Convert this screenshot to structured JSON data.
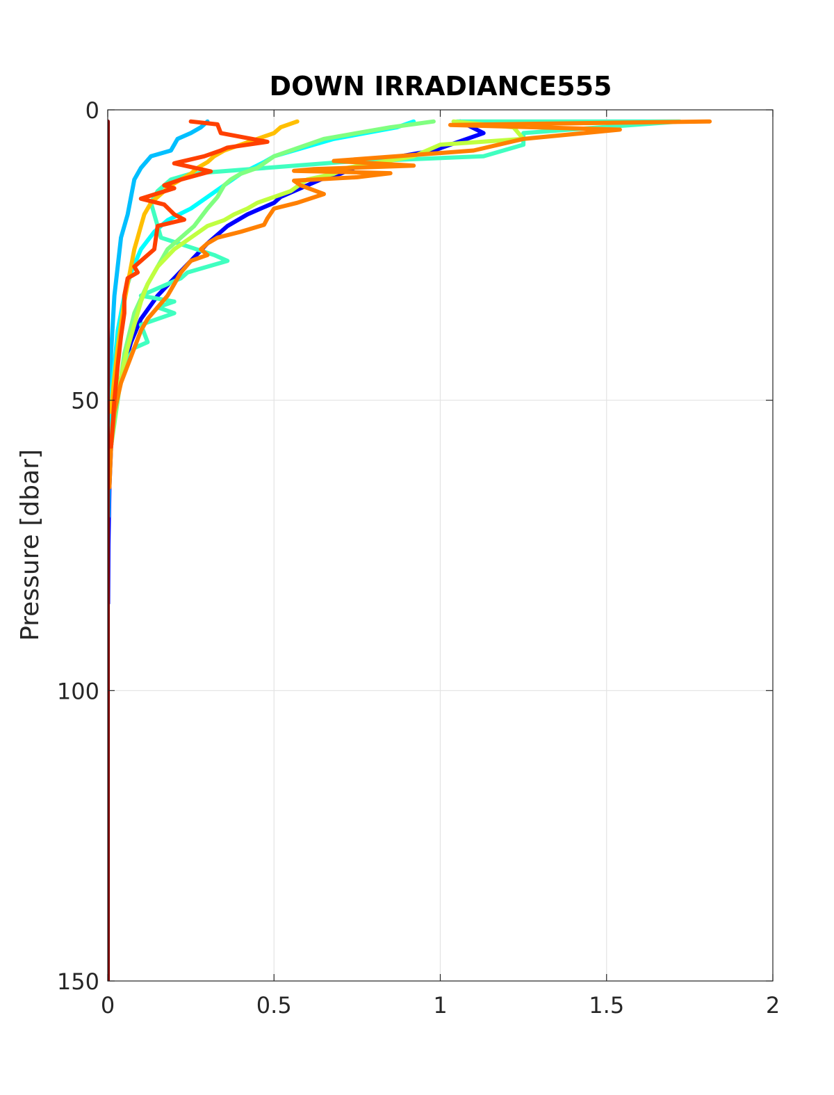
{
  "chart_data": {
    "type": "line",
    "title": "DOWN IRRADIANCE555",
    "xlabel": "",
    "ylabel": "Pressure [dbar]",
    "xlim": [
      0,
      2
    ],
    "ylim": [
      0,
      150
    ],
    "y_reversed": true,
    "grid": true,
    "x_ticks": [
      "0",
      "0.5",
      "1",
      "1.5",
      "2"
    ],
    "y_ticks": [
      "0",
      "50",
      "100",
      "150"
    ],
    "series": [
      {
        "color": "#0000ff",
        "x": [
          1.06,
          1.13,
          0.98,
          0.78,
          0.7,
          0.64,
          0.56,
          0.52,
          0.5,
          0.46,
          0.42,
          0.36,
          0.3,
          0.25,
          0.2,
          0.15,
          0.1,
          0.07,
          0.05,
          0.03,
          0.02,
          0.01,
          0.005,
          0.002,
          0.001
        ],
        "y": [
          2,
          4,
          7,
          9,
          11,
          12,
          14,
          15,
          16,
          17,
          18,
          20,
          23,
          26,
          29,
          32,
          36,
          40,
          44,
          48,
          53,
          58,
          65,
          75,
          85
        ]
      },
      {
        "color": "#00bfff",
        "x": [
          0.3,
          0.28,
          0.25,
          0.21,
          0.19,
          0.13,
          0.1,
          0.08,
          0.07,
          0.06,
          0.04,
          0.02,
          0.01,
          0.005,
          0.002
        ],
        "y": [
          2,
          3,
          4,
          5,
          7,
          8,
          10,
          12,
          15,
          18,
          22,
          32,
          42,
          55,
          70
        ]
      },
      {
        "color": "#00ffff",
        "x": [
          0.92,
          0.87,
          0.68,
          0.5,
          0.47,
          0.4,
          0.35,
          0.3,
          0.25,
          0.18,
          0.14,
          0.1,
          0.07,
          0.05,
          0.03,
          0.02,
          0.01,
          0.005
        ],
        "y": [
          2,
          3,
          5,
          8,
          9,
          11,
          13,
          15,
          17,
          19,
          21,
          24,
          28,
          32,
          38,
          44,
          50,
          60
        ]
      },
      {
        "color": "#40ffc0",
        "x": [
          1.05,
          1.72,
          1.25,
          1.25,
          1.13,
          0.7,
          0.25,
          0.19,
          0.15,
          0.13,
          0.16,
          0.32,
          0.36,
          0.24,
          0.22,
          0.1,
          0.2,
          0.15,
          0.2,
          0.1,
          0.12,
          0.08,
          0.05,
          0.03,
          0.01
        ],
        "y": [
          2,
          2,
          4,
          6,
          8,
          9,
          11,
          12,
          14,
          16,
          22,
          25,
          26,
          28,
          29,
          32,
          33,
          34,
          35,
          37,
          40,
          41,
          44,
          49,
          55
        ]
      },
      {
        "color": "#80ff80",
        "x": [
          0.98,
          0.85,
          0.65,
          0.55,
          0.5,
          0.45,
          0.4,
          0.37,
          0.35,
          0.33,
          0.3,
          0.26,
          0.22,
          0.18,
          0.15,
          0.12,
          0.08,
          0.05,
          0.03,
          0.01
        ],
        "y": [
          2,
          3,
          5,
          7,
          8,
          10,
          11,
          12,
          13,
          15,
          17,
          20,
          22,
          24,
          27,
          30,
          35,
          42,
          50,
          58
        ]
      },
      {
        "color": "#c0ff40",
        "x": [
          1.04,
          1.22,
          1.25,
          1.0,
          0.92,
          0.82,
          0.72,
          0.68,
          0.6,
          0.55,
          0.5,
          0.45,
          0.42,
          0.38,
          0.35,
          0.3,
          0.25,
          0.2,
          0.15,
          0.12,
          0.1,
          0.08,
          0.06,
          0.04,
          0.02,
          0.01
        ],
        "y": [
          2,
          3,
          5,
          6,
          8,
          9,
          10,
          11,
          12,
          14,
          15,
          16,
          17,
          18,
          19,
          20,
          22,
          24,
          27,
          30,
          33,
          37,
          41,
          46,
          52,
          58
        ]
      },
      {
        "color": "#ffbf00",
        "x": [
          0.57,
          0.52,
          0.5,
          0.45,
          0.4,
          0.35,
          0.32,
          0.3,
          0.27,
          0.25,
          0.22,
          0.19,
          0.17,
          0.15,
          0.13,
          0.11,
          0.1,
          0.09,
          0.08,
          0.07,
          0.06,
          0.05,
          0.04,
          0.03,
          0.02,
          0.01
        ],
        "y": [
          2,
          3,
          4,
          5,
          6,
          7,
          8,
          9,
          10,
          11,
          12,
          13,
          14,
          15,
          16,
          18,
          20,
          22,
          24,
          27,
          30,
          33,
          37,
          41,
          46,
          52
        ]
      },
      {
        "color": "#ff8000",
        "x": [
          1.81,
          1.03,
          1.54,
          1.25,
          1.1,
          0.68,
          0.92,
          0.62,
          0.56,
          0.85,
          0.75,
          0.56,
          0.58,
          0.65,
          0.57,
          0.5,
          0.48,
          0.47,
          0.4,
          0.33,
          0.3,
          0.28,
          0.3,
          0.25,
          0.22,
          0.2,
          0.18,
          0.15,
          0.12,
          0.1,
          0.08,
          0.06,
          0.04,
          0.02,
          0.01,
          0.005
        ],
        "y": [
          2,
          2.6,
          3.4,
          5,
          7,
          8.8,
          9.6,
          10.2,
          10.5,
          10.9,
          11.6,
          12.2,
          13,
          14.5,
          16,
          17,
          18.7,
          19.8,
          21,
          22,
          23,
          24,
          25,
          26,
          28,
          30,
          32,
          34,
          36,
          38,
          41,
          44,
          47,
          52,
          58,
          65
        ]
      },
      {
        "color": "#ff4000",
        "x": [
          0.25,
          0.33,
          0.34,
          0.48,
          0.36,
          0.34,
          0.29,
          0.2,
          0.31,
          0.22,
          0.17,
          0.2,
          0.1,
          0.17,
          0.2,
          0.23,
          0.15,
          0.14,
          0.08,
          0.09,
          0.06,
          0.05,
          0.05,
          0.04,
          0.03,
          0.02,
          0.01
        ],
        "y": [
          2,
          2.5,
          4,
          5.5,
          6.5,
          7,
          8,
          9.2,
          10.6,
          12,
          13,
          13.5,
          15.3,
          16.3,
          18,
          18.9,
          20,
          24,
          27,
          28,
          29,
          32,
          35,
          39,
          44,
          50,
          58
        ]
      },
      {
        "color": "#800000",
        "x": [
          0,
          0,
          0
        ],
        "y": [
          2,
          75,
          150
        ]
      }
    ]
  }
}
